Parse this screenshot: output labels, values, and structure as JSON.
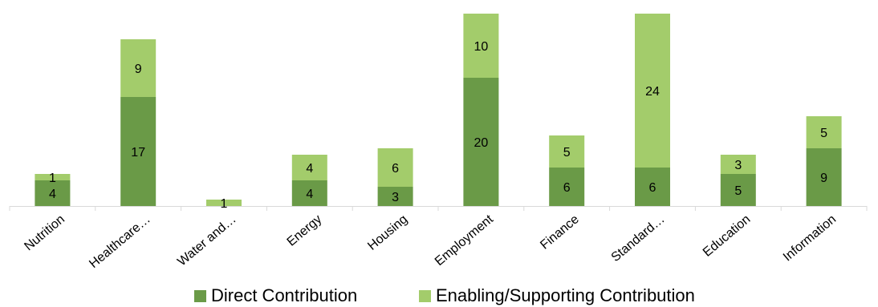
{
  "chart_data": {
    "type": "bar",
    "stacked": true,
    "categories": [
      "Nutrition",
      "Healthcare…",
      "Water and…",
      "Energy",
      "Housing",
      "Employment",
      "Finance",
      "Standard…",
      "Education",
      "Information"
    ],
    "series": [
      {
        "name": "Direct Contribution",
        "color": "#6a9a47",
        "values": [
          4,
          17,
          0,
          4,
          3,
          20,
          6,
          6,
          5,
          9
        ],
        "labels": [
          "4",
          "17",
          "",
          "4",
          "3",
          "20",
          "6",
          "6",
          "5",
          "9"
        ]
      },
      {
        "name": "Enabling/Supporting Contribution",
        "color": "#a3cc6b",
        "values": [
          1,
          9,
          1,
          4,
          6,
          10,
          5,
          24,
          3,
          5
        ],
        "labels": [
          "1",
          "9",
          "1",
          "4",
          "6",
          "10",
          "5",
          "24",
          "3",
          "5"
        ]
      }
    ],
    "ylim": [
      0,
      30
    ],
    "grid": false,
    "legend_position": "bottom"
  }
}
